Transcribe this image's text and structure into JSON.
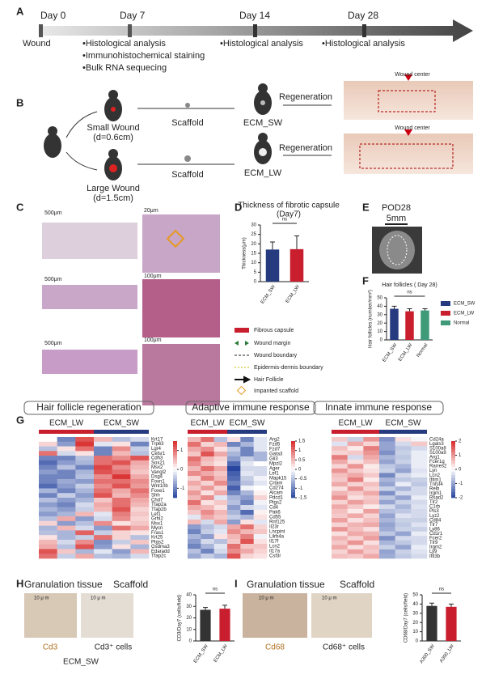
{
  "panel_labels": [
    "A",
    "B",
    "C",
    "D",
    "E",
    "F",
    "G",
    "H",
    "I"
  ],
  "timeline": {
    "days": [
      "Day 0",
      "Day 7",
      "Day 14",
      "Day 28"
    ],
    "start": "Wound",
    "day7": [
      "•Histological analysis",
      "•Immunohistochemical staining",
      "•Bulk RNA sequecing"
    ],
    "day14": "•Histological analysis",
    "day28": "•Histological analysis"
  },
  "workflow": {
    "small": "Small Wound",
    "small_d": "(d=0.6cm)",
    "large": "Large Wound",
    "large_d": "(d=1.5cm)",
    "scaffold": "Scaffold",
    "ecm_sw": "ECM_SW",
    "ecm_lw": "ECM_LW",
    "regeneration": "Regeneration",
    "wound_center": "Wound center"
  },
  "histology": {
    "scale_bars": [
      "500μm",
      "20μm",
      "500μm",
      "100μm",
      "500μm",
      "100μm"
    ],
    "legend": [
      "Fibrous capsule",
      "Wound margin",
      "Wound boundary",
      "Epidermis-dermis boundary",
      "Hair Follicle",
      "Impanted scaffold"
    ]
  },
  "panel_e": {
    "title": "POD28",
    "scale": "5mm"
  },
  "chart_data": [
    {
      "type": "bar",
      "title": "Thickness of fibrotic capsule",
      "subtitle": "(Day7)",
      "annotation": "ns",
      "ylabel": "Thickness(μm)",
      "categories": [
        "ECM_SW",
        "ECM_LW"
      ],
      "values": [
        17,
        17.2
      ],
      "errors": [
        4,
        7
      ],
      "colors": [
        "#263a80",
        "#c81e2e"
      ],
      "ylim": [
        0,
        30
      ],
      "yticks": [
        0,
        5,
        10,
        15,
        20,
        25,
        30
      ]
    },
    {
      "type": "bar",
      "title": "Hair follicles ( Day 28)",
      "annotation": "ns",
      "ylabel": "Hair follicles (number/mm²)",
      "categories": [
        "ECM_SW",
        "ECM_LW",
        "Normal"
      ],
      "values": [
        37,
        34,
        35
      ],
      "errors": [
        3,
        3,
        2
      ],
      "colors": [
        "#263a80",
        "#c81e2e",
        "#3e9a78"
      ],
      "legend": true,
      "ylim": [
        0,
        50
      ],
      "yticks": [
        0,
        10,
        20,
        30,
        40,
        50
      ]
    },
    {
      "type": "bar",
      "annotation": "ns",
      "ylabel": "CD3/Day7 (cells/field)",
      "categories": [
        "ECM_SW",
        "ECM_LW"
      ],
      "values": [
        27,
        28
      ],
      "errors": [
        2,
        3
      ],
      "colors": [
        "#333333",
        "#c81e2e"
      ],
      "ylim": [
        0,
        40
      ],
      "yticks": [
        0,
        10,
        20,
        30,
        40
      ]
    },
    {
      "type": "bar",
      "annotation": "ns",
      "ylabel": "CD68/Day7 (cells/field)",
      "categories": [
        "A300_SW",
        "A300_LW"
      ],
      "values": [
        38,
        37
      ],
      "errors": [
        3,
        3
      ],
      "colors": [
        "#333333",
        "#c81e2e"
      ],
      "ylim": [
        0,
        50
      ],
      "yticks": [
        0,
        10,
        20,
        30,
        40,
        50
      ]
    }
  ],
  "heatmaps": [
    {
      "title": "Hair follicle regeneration",
      "groups": [
        "ECM_LW",
        "ECM_SW"
      ],
      "clim": [
        -1.5,
        1.5
      ],
      "cticks": [
        1,
        0,
        -1
      ],
      "genes": [
        "Krt17",
        "Trp63",
        "Lgr4",
        "Celsr1",
        "Cdh3",
        "Sox21",
        "Msx2",
        "Vangl2",
        "Dsg4",
        "Foxn1",
        "Wnt10b",
        "Foxe1",
        "Shh",
        "Chd7",
        "Tfap2a",
        "Tfap2b",
        "Lef1",
        "Grhl2",
        "Msx1",
        "Mycn",
        "Fras1",
        "Krt25",
        "Ptgs2",
        "Gsdma3",
        "Edaradd",
        "Tfap2c"
      ],
      "matrix": [
        [
          0,
          -1,
          1.2,
          0.5,
          -0.5,
          -0.3
        ],
        [
          0.3,
          -0.8,
          1.4,
          -0.2,
          0.2,
          -1
        ],
        [
          -0.5,
          0.2,
          1,
          -1,
          0.8,
          -0.4
        ],
        [
          1,
          -0.3,
          0.2,
          -1,
          0.5,
          -0.5
        ],
        [
          -1,
          -1,
          -0.5,
          1,
          0.8,
          1.2
        ],
        [
          -1.2,
          -0.8,
          -0.6,
          1,
          1.2,
          0.6
        ],
        [
          -1,
          -0.5,
          -1,
          1.3,
          0.8,
          0.5
        ],
        [
          -0.8,
          -1,
          -0.6,
          1.2,
          1,
          0.4
        ],
        [
          -1,
          -1,
          -0.5,
          0.8,
          1.4,
          0.6
        ],
        [
          -1,
          -0.7,
          -0.8,
          1,
          1,
          0.8
        ],
        [
          -1.2,
          -0.8,
          -0.4,
          0.8,
          1.2,
          0.7
        ],
        [
          -0.6,
          -1,
          -0.6,
          1,
          0.6,
          1
        ],
        [
          -1,
          -0.4,
          -0.8,
          1.2,
          0.5,
          0.8
        ],
        [
          -0.5,
          -0.8,
          -0.6,
          0.4,
          1,
          0.6
        ],
        [
          -0.8,
          -1,
          -0.3,
          0.6,
          1,
          0.5
        ],
        [
          -0.6,
          -0.8,
          -0.4,
          0.5,
          1.2,
          0.3
        ],
        [
          -0.8,
          -0.6,
          0.5,
          -0.2,
          0.9,
          0.4
        ],
        [
          -0.5,
          0.6,
          -0.8,
          -0.3,
          0.8,
          0.3
        ],
        [
          0.3,
          -0.8,
          -0.5,
          0.8,
          0.2,
          0.4
        ],
        [
          -0.6,
          0.5,
          -0.3,
          -0.8,
          1,
          0.6
        ],
        [
          -0.5,
          -0.6,
          1.1,
          -0.4,
          0.3,
          0.2
        ],
        [
          0.2,
          -0.6,
          -0.4,
          1,
          0.3,
          -0.5
        ],
        [
          0.5,
          -0.3,
          0.8,
          -0.9,
          -0.4,
          0.4
        ],
        [
          0.6,
          -0.5,
          1.2,
          -0.8,
          0.2,
          -0.6
        ],
        [
          1.2,
          0.4,
          -0.6,
          -0.2,
          -0.8,
          0.5
        ],
        [
          1,
          -0.4,
          0.6,
          -0.5,
          -0.6,
          -0.3
        ]
      ]
    },
    {
      "title": "Adaptive immune response",
      "groups": [
        "ECM_LW",
        "ECM_SW"
      ],
      "clim": [
        -1.5,
        1.5
      ],
      "cticks": [
        1.5,
        1,
        0.5,
        0,
        -0.5,
        -1,
        -1.5
      ],
      "genes": [
        "Arg2",
        "Fzd5",
        "Fzd7",
        "Gata3",
        "Gli3",
        "Mpzl2",
        "Ager",
        "Lef1",
        "Mapk15",
        "Crtam",
        "Cd274",
        "Alcam",
        "Pdcd1",
        "Ptgs2",
        "Cd4",
        "Pak6",
        "Cd55",
        "Rnf125",
        "Il23r",
        "Lncpint",
        "Lilrb4a",
        "Il17f",
        "Lcn2",
        "Il17a",
        "Csf3r"
      ],
      "matrix": [
        [
          0.5,
          1,
          -0.5,
          0.2,
          -1,
          -0.2
        ],
        [
          1,
          0.3,
          0.5,
          -1,
          -0.6,
          -0.2
        ],
        [
          0.6,
          0.8,
          0.2,
          -0.4,
          -1,
          -0.2
        ],
        [
          0.4,
          1.2,
          0.6,
          -0.6,
          -1,
          -0.6
        ],
        [
          1,
          0.5,
          0.3,
          -0.8,
          -0.4,
          -0.6
        ],
        [
          0.8,
          0.4,
          0.2,
          -1.2,
          -0.2,
          0
        ],
        [
          0.5,
          1,
          0.6,
          -1.5,
          -0.3,
          -0.3
        ],
        [
          0.8,
          0.6,
          0.4,
          -1.3,
          -0.2,
          -0.3
        ],
        [
          0.3,
          0.9,
          0.5,
          -1.2,
          -0.4,
          -0.1
        ],
        [
          0.6,
          0.3,
          0.8,
          -1,
          -0.5,
          -0.2
        ],
        [
          0.4,
          0.7,
          0.3,
          -1.3,
          -0.1,
          0
        ],
        [
          0.7,
          0.2,
          0.6,
          -1,
          -0.6,
          0.1
        ],
        [
          0.5,
          0.8,
          -0.2,
          -0.6,
          -0.8,
          0.3
        ],
        [
          1,
          0.2,
          0.4,
          -0.5,
          -1,
          -0.1
        ],
        [
          0.6,
          0.5,
          0.2,
          -0.8,
          -0.3,
          -0.2
        ],
        [
          0.4,
          0.8,
          0.5,
          -0.6,
          -1.2,
          0.1
        ],
        [
          -0.2,
          0.6,
          0.4,
          -0.4,
          -0.6,
          0.2
        ],
        [
          0.5,
          -0.3,
          0.6,
          -0.8,
          0.2,
          -0.2
        ],
        [
          -0.8,
          -0.5,
          -0.3,
          0.6,
          1,
          0.3
        ],
        [
          -1,
          -0.4,
          -0.2,
          0.8,
          0.5,
          0.4
        ],
        [
          -0.6,
          -0.8,
          0.2,
          0.5,
          0.9,
          -0.1
        ],
        [
          -0.8,
          -0.3,
          -0.5,
          0.4,
          1.2,
          0.2
        ],
        [
          -1,
          -0.6,
          -0.2,
          1,
          0.4,
          0.4
        ],
        [
          -0.5,
          -1,
          -0.3,
          0.8,
          0.6,
          0.3
        ],
        [
          -0.7,
          -0.4,
          -0.6,
          1.2,
          0.3,
          0.2
        ]
      ]
    },
    {
      "title": "Innate immune response",
      "groups": [
        "ECM_LW",
        "ECM_SW"
      ],
      "clim": [
        -2,
        2
      ],
      "cticks": [
        2,
        1,
        0,
        -1,
        -2
      ],
      "genes": [
        "Cd24a",
        "Lgals3",
        "S100a8",
        "S100a9",
        "Arg1",
        "Fcer1g",
        "Rarres2",
        "Lyn",
        "Lcn2",
        "Ifitm1",
        "Tnfsf4",
        "Relb",
        "Irgm1",
        "Rsad2",
        "Tlr2",
        "C1rb",
        "Pls3",
        "Lyz2",
        "Cd84",
        "Tlr7",
        "Ly86",
        "Cd1r1",
        "Fcer2",
        "Tlr9",
        "Irgm2",
        "Ly9",
        "Ifit3b"
      ],
      "matrix": [
        [
          0.5,
          -0.5,
          1,
          -1.2,
          0.3,
          -0.1
        ],
        [
          -0.3,
          0.8,
          0.4,
          -1,
          -0.4,
          0.5
        ],
        [
          0.6,
          0.2,
          1.2,
          -1,
          -0.6,
          -0.4
        ],
        [
          0.4,
          0.5,
          1,
          -1.2,
          -0.5,
          -0.2
        ],
        [
          1.2,
          -0.4,
          0.8,
          -0.8,
          -0.6,
          -0.2
        ],
        [
          0.8,
          0.3,
          0.6,
          -1,
          -0.5,
          -0.2
        ],
        [
          0.4,
          1,
          0.2,
          -0.6,
          -0.8,
          -0.2
        ],
        [
          1,
          0.5,
          0.3,
          -0.5,
          -1,
          -0.3
        ],
        [
          0.6,
          0.8,
          0.5,
          -1.3,
          -0.4,
          -0.2
        ],
        [
          0.5,
          1.2,
          0.2,
          -0.8,
          -0.6,
          -0.5
        ],
        [
          0.8,
          0.4,
          0.6,
          -1,
          -0.2,
          -0.6
        ],
        [
          0.3,
          1,
          0.4,
          -0.5,
          -0.8,
          -0.4
        ],
        [
          0.7,
          0.5,
          0.8,
          -1.2,
          -0.4,
          -0.4
        ],
        [
          1,
          0.3,
          0.5,
          -0.6,
          -1,
          -0.2
        ],
        [
          0.4,
          0.9,
          0.6,
          -1,
          -0.5,
          -0.4
        ],
        [
          0.8,
          0.5,
          0.2,
          -0.4,
          -0.8,
          -0.3
        ],
        [
          0.6,
          0.2,
          0.9,
          -0.7,
          -0.6,
          -0.4
        ],
        [
          0.5,
          0.8,
          0.4,
          -1,
          -0.3,
          -0.4
        ],
        [
          0.9,
          0.3,
          0.6,
          -0.8,
          -0.5,
          -0.5
        ],
        [
          0.4,
          0.7,
          0.8,
          -1,
          -0.6,
          -0.3
        ],
        [
          1,
          0.6,
          0.3,
          -0.9,
          -0.5,
          -0.5
        ],
        [
          0.3,
          0.8,
          0.7,
          -0.6,
          -1,
          -0.2
        ],
        [
          0.7,
          0.4,
          0.9,
          -1.2,
          -0.4,
          -0.4
        ],
        [
          0.5,
          1,
          0.3,
          -0.8,
          -0.6,
          -0.4
        ],
        [
          0.8,
          0.3,
          0.6,
          -0.5,
          -1,
          -0.2
        ],
        [
          0.4,
          0.9,
          0.5,
          -1,
          -0.5,
          -0.3
        ],
        [
          0.6,
          0.5,
          0.8,
          -0.9,
          -0.6,
          -0.4
        ]
      ]
    }
  ],
  "panel_h": {
    "labels": [
      "Granulation tissue",
      "Scaffold"
    ],
    "scale": "10 μ m",
    "stain": "Cd3",
    "cells": "Cd3⁺ cells",
    "group": "ECM_SW"
  },
  "panel_i": {
    "labels": [
      "Granulation tissue",
      "Scaffold"
    ],
    "scale": "10 μ m",
    "stain": "Cd68",
    "cells": "Cd68⁺ cells"
  }
}
